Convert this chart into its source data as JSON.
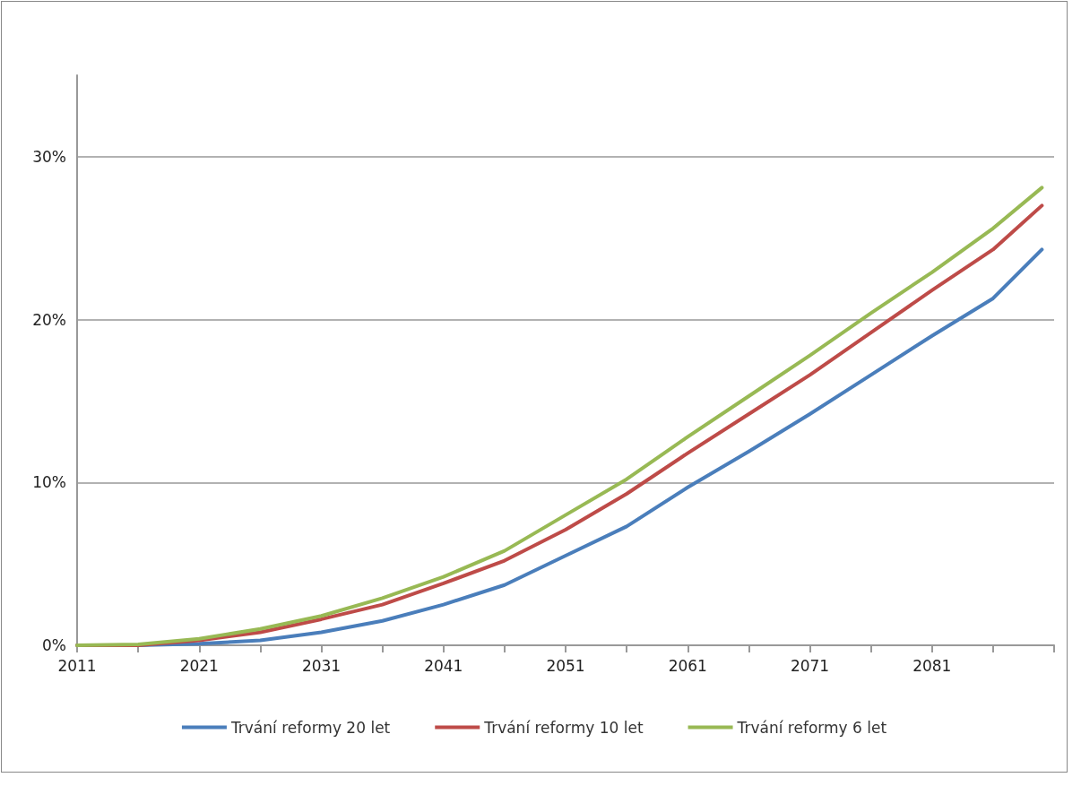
{
  "chart_data": {
    "type": "line",
    "x": [
      2011,
      2016,
      2021,
      2026,
      2031,
      2036,
      2041,
      2046,
      2051,
      2056,
      2061,
      2066,
      2071,
      2076,
      2081,
      2086,
      2090
    ],
    "series": [
      {
        "name": "Trvání reformy 20 let",
        "color": "#4a7ebb",
        "values": [
          0,
          0,
          0.1,
          0.3,
          0.8,
          1.5,
          2.5,
          3.7,
          5.5,
          7.3,
          9.7,
          11.9,
          14.2,
          16.6,
          19.0,
          21.3,
          24.3
        ]
      },
      {
        "name": "Trvání reformy 10 let",
        "color": "#be4b48",
        "values": [
          0,
          0,
          0.3,
          0.8,
          1.6,
          2.5,
          3.8,
          5.2,
          7.1,
          9.3,
          11.8,
          14.2,
          16.6,
          19.2,
          21.8,
          24.3,
          27.0
        ]
      },
      {
        "name": "Trvání reformy 6 let",
        "color": "#98b954",
        "values": [
          0,
          0.05,
          0.4,
          1.0,
          1.8,
          2.9,
          4.2,
          5.8,
          8.0,
          10.2,
          12.8,
          15.3,
          17.8,
          20.4,
          22.9,
          25.6,
          28.1
        ]
      }
    ],
    "xlim": [
      2011,
      2091
    ],
    "xticks": [
      2011,
      {
        "value": 2016,
        "label": null
      },
      2021,
      {
        "value": 2026,
        "label": null
      },
      2031,
      {
        "value": 2036,
        "label": null
      },
      2041,
      {
        "value": 2046,
        "label": null
      },
      2051,
      {
        "value": 2056,
        "label": null
      },
      2061,
      {
        "value": 2066,
        "label": null
      },
      2071,
      {
        "value": 2076,
        "label": null
      },
      2081,
      {
        "value": 2086,
        "label": null
      },
      {
        "value": 2091,
        "label": null
      }
    ],
    "ylim": [
      0,
      35
    ],
    "yticks": [
      {
        "value": 0,
        "label": "0%"
      },
      {
        "value": 10,
        "label": "10%"
      },
      {
        "value": 20,
        "label": "20%"
      },
      {
        "value": 30,
        "label": "30%"
      }
    ],
    "grid": "y",
    "legend": "bottom",
    "marker": "none",
    "line_style": "solid"
  }
}
